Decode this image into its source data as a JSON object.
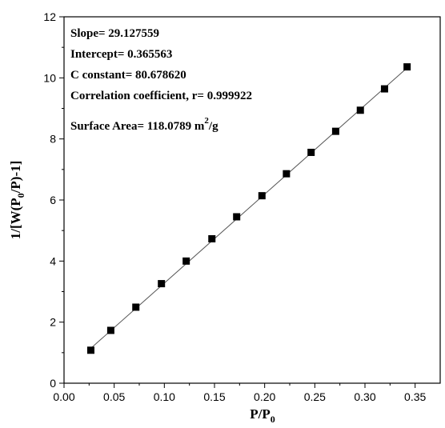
{
  "chart_data": {
    "type": "scatter",
    "x": [
      0.0267,
      0.0466,
      0.0716,
      0.0971,
      0.1218,
      0.1474,
      0.1721,
      0.1973,
      0.2217,
      0.2463,
      0.2708,
      0.2954,
      0.3195,
      0.342
    ],
    "y": [
      1.08,
      1.73,
      2.49,
      3.26,
      4.0,
      4.73,
      5.45,
      6.14,
      6.86,
      7.56,
      8.25,
      8.94,
      9.64,
      10.36
    ],
    "fit_line": {
      "slope": 29.127559,
      "intercept": 0.365563,
      "x_range": [
        0.0267,
        0.342
      ]
    },
    "xlabel": {
      "main": "P/P",
      "sub": "0"
    },
    "ylabel": {
      "prefix": "1/[W(P",
      "sub": "0",
      "suffix": "/P)-1]"
    },
    "xlim": [
      0.0,
      0.375
    ],
    "ylim": [
      0,
      12
    ],
    "xticks": [
      "0.00",
      "0.05",
      "0.10",
      "0.15",
      "0.20",
      "0.25",
      "0.30",
      "0.35"
    ],
    "yticks": [
      "0",
      "2",
      "4",
      "6",
      "8",
      "10",
      "12"
    ],
    "grid": false,
    "marker": "square",
    "marker_color": "#000000",
    "line_color": "#555555",
    "annotations": {
      "slope": "Slope= 29.127559",
      "intercept": "Intercept= 0.365563",
      "c_constant": "C constant= 80.678620",
      "correlation": "Correlation coefficient, r= 0.999922",
      "surface_area": "Surface Area= 118.0789 m",
      "surface_area_sup": "2",
      "surface_area_unit": "/g"
    }
  }
}
